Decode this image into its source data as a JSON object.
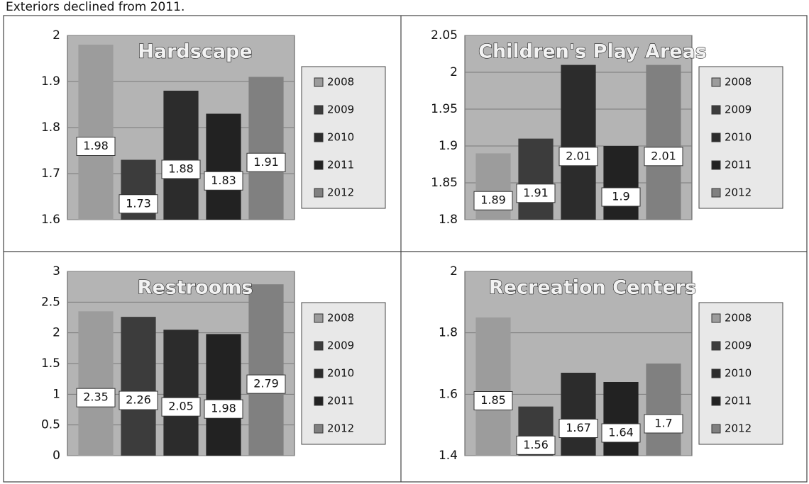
{
  "caption": "Exteriors declined from 2011.",
  "chart_data": [
    {
      "type": "bar",
      "title": "Hardscape",
      "ylim": [
        1.6,
        2
      ],
      "yticks": [
        1.6,
        1.7,
        1.8,
        1.9,
        2
      ],
      "grid": true,
      "legend": "right",
      "series": [
        {
          "name": "2008",
          "color": "#9c9c9c",
          "values": [
            1.98
          ]
        },
        {
          "name": "2009",
          "color": "#3c3c3c",
          "values": [
            1.73
          ]
        },
        {
          "name": "2010",
          "color": "#2c2c2c",
          "values": [
            1.88
          ]
        },
        {
          "name": "2011",
          "color": "#222222",
          "values": [
            1.83
          ]
        },
        {
          "name": "2012",
          "color": "#808080",
          "values": [
            1.91
          ]
        }
      ]
    },
    {
      "type": "bar",
      "title": "Children's Play Areas",
      "ylim": [
        1.8,
        2.05
      ],
      "yticks": [
        1.8,
        1.85,
        1.9,
        1.95,
        2,
        2.05
      ],
      "grid": true,
      "legend": "right",
      "series": [
        {
          "name": "2008",
          "color": "#9c9c9c",
          "values": [
            1.89
          ]
        },
        {
          "name": "2009",
          "color": "#3c3c3c",
          "values": [
            1.91
          ]
        },
        {
          "name": "2010",
          "color": "#2c2c2c",
          "values": [
            2.01
          ]
        },
        {
          "name": "2011",
          "color": "#222222",
          "values": [
            1.9
          ]
        },
        {
          "name": "2012",
          "color": "#808080",
          "values": [
            2.01
          ]
        }
      ]
    },
    {
      "type": "bar",
      "title": "Restrooms",
      "ylim": [
        0,
        3
      ],
      "yticks": [
        0,
        0.5,
        1,
        1.5,
        2,
        2.5,
        3
      ],
      "grid": true,
      "legend": "right",
      "series": [
        {
          "name": "2008",
          "color": "#9c9c9c",
          "values": [
            2.35
          ]
        },
        {
          "name": "2009",
          "color": "#3c3c3c",
          "values": [
            2.26
          ]
        },
        {
          "name": "2010",
          "color": "#2c2c2c",
          "values": [
            2.05
          ]
        },
        {
          "name": "2011",
          "color": "#222222",
          "values": [
            1.98
          ]
        },
        {
          "name": "2012",
          "color": "#808080",
          "values": [
            2.79
          ]
        }
      ]
    },
    {
      "type": "bar",
      "title": "Recreation Centers",
      "ylim": [
        1.4,
        2
      ],
      "yticks": [
        1.4,
        1.6,
        1.8,
        2
      ],
      "grid": true,
      "legend": "right",
      "series": [
        {
          "name": "2008",
          "color": "#9c9c9c",
          "values": [
            1.85
          ]
        },
        {
          "name": "2009",
          "color": "#3c3c3c",
          "values": [
            1.56
          ]
        },
        {
          "name": "2010",
          "color": "#2c2c2c",
          "values": [
            1.67
          ]
        },
        {
          "name": "2011",
          "color": "#222222",
          "values": [
            1.64
          ]
        },
        {
          "name": "2012",
          "color": "#808080",
          "values": [
            1.7
          ]
        }
      ]
    }
  ]
}
